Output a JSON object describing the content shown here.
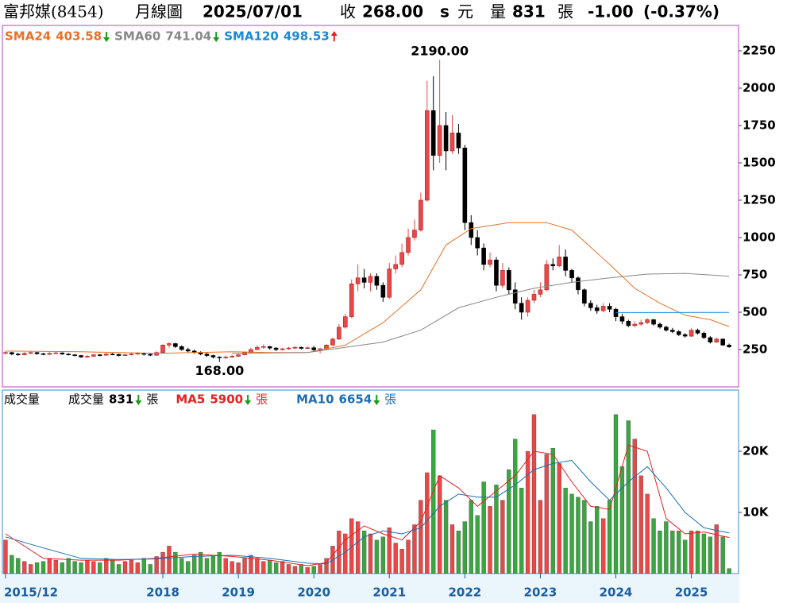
{
  "header": {
    "name": "富邦媒(8454)",
    "period": "月線圖",
    "date": "2025/07/01",
    "close_label": "收",
    "close": "268.00",
    "s": "s",
    "currency": "元",
    "volume_label": "量",
    "volume": "831",
    "volume_unit": "張",
    "change": "-1.00",
    "change_pct": "(-0.37%)"
  },
  "chart_data": [
    {
      "type": "candlestick",
      "colors": {
        "up": "#e84848",
        "down": "#000000"
      },
      "xlim": [
        -0.5,
        116.5
      ],
      "ylim": [
        0,
        2420
      ],
      "yticks": [
        250,
        500,
        750,
        1000,
        1250,
        1500,
        1750,
        2000,
        2250
      ],
      "candles": [
        [
          225,
          240,
          218,
          230
        ],
        [
          230,
          235,
          212,
          220
        ],
        [
          220,
          228,
          208,
          215
        ],
        [
          215,
          232,
          210,
          225
        ],
        [
          225,
          238,
          220,
          230
        ],
        [
          230,
          234,
          216,
          222
        ],
        [
          222,
          229,
          212,
          218
        ],
        [
          218,
          232,
          214,
          225
        ],
        [
          225,
          236,
          220,
          228
        ],
        [
          228,
          231,
          214,
          220
        ],
        [
          220,
          226,
          210,
          215
        ],
        [
          215,
          220,
          204,
          210
        ],
        [
          210,
          214,
          195,
          200
        ],
        [
          200,
          212,
          196,
          205
        ],
        [
          205,
          222,
          202,
          215
        ],
        [
          215,
          220,
          205,
          212
        ],
        [
          212,
          228,
          208,
          220
        ],
        [
          220,
          226,
          212,
          218
        ],
        [
          218,
          222,
          204,
          210
        ],
        [
          210,
          222,
          206,
          215
        ],
        [
          215,
          226,
          210,
          220
        ],
        [
          220,
          232,
          215,
          225
        ],
        [
          225,
          230,
          210,
          218
        ],
        [
          218,
          224,
          206,
          212
        ],
        [
          212,
          238,
          208,
          230
        ],
        [
          230,
          285,
          225,
          280
        ],
        [
          280,
          300,
          262,
          290
        ],
        [
          290,
          295,
          260,
          270
        ],
        [
          270,
          278,
          242,
          250
        ],
        [
          250,
          262,
          232,
          240
        ],
        [
          240,
          250,
          222,
          230
        ],
        [
          230,
          238,
          212,
          220
        ],
        [
          220,
          228,
          200,
          210
        ],
        [
          210,
          216,
          190,
          200
        ],
        [
          200,
          205,
          168,
          195
        ],
        [
          195,
          210,
          188,
          200
        ],
        [
          200,
          215,
          195,
          205
        ],
        [
          205,
          222,
          200,
          215
        ],
        [
          215,
          238,
          210,
          230
        ],
        [
          230,
          262,
          225,
          250
        ],
        [
          250,
          278,
          245,
          265
        ],
        [
          265,
          285,
          255,
          270
        ],
        [
          270,
          275,
          250,
          260
        ],
        [
          260,
          266,
          240,
          250
        ],
        [
          250,
          262,
          242,
          255
        ],
        [
          255,
          268,
          248,
          260
        ],
        [
          260,
          272,
          252,
          265
        ],
        [
          265,
          270,
          250,
          258
        ],
        [
          258,
          270,
          252,
          262
        ],
        [
          262,
          275,
          238,
          248
        ],
        [
          248,
          262,
          225,
          255
        ],
        [
          255,
          285,
          250,
          280
        ],
        [
          280,
          330,
          275,
          320
        ],
        [
          320,
          420,
          315,
          400
        ],
        [
          400,
          490,
          390,
          470
        ],
        [
          470,
          720,
          460,
          690
        ],
        [
          690,
          820,
          640,
          730
        ],
        [
          730,
          790,
          660,
          700
        ],
        [
          700,
          760,
          640,
          740
        ],
        [
          740,
          760,
          650,
          680
        ],
        [
          680,
          700,
          570,
          600
        ],
        [
          600,
          830,
          590,
          790
        ],
        [
          790,
          880,
          760,
          820
        ],
        [
          820,
          960,
          800,
          900
        ],
        [
          900,
          1060,
          880,
          1000
        ],
        [
          1000,
          1120,
          980,
          1050
        ],
        [
          1050,
          1300,
          1040,
          1250
        ],
        [
          1250,
          2050,
          1240,
          1850
        ],
        [
          1850,
          2080,
          1450,
          1550
        ],
        [
          1550,
          2190,
          1500,
          1750
        ],
        [
          1750,
          1840,
          1450,
          1580
        ],
        [
          1580,
          1820,
          1560,
          1700
        ],
        [
          1700,
          1760,
          1560,
          1600
        ],
        [
          1600,
          1620,
          1050,
          1100
        ],
        [
          1100,
          1150,
          950,
          1000
        ],
        [
          1000,
          1050,
          880,
          930
        ],
        [
          930,
          960,
          780,
          820
        ],
        [
          820,
          900,
          800,
          850
        ],
        [
          850,
          870,
          640,
          680
        ],
        [
          680,
          830,
          660,
          780
        ],
        [
          780,
          800,
          620,
          650
        ],
        [
          650,
          700,
          520,
          560
        ],
        [
          560,
          600,
          450,
          500
        ],
        [
          500,
          600,
          470,
          580
        ],
        [
          580,
          650,
          560,
          620
        ],
        [
          620,
          700,
          600,
          650
        ],
        [
          650,
          850,
          640,
          820
        ],
        [
          820,
          860,
          780,
          810
        ],
        [
          810,
          950,
          800,
          870
        ],
        [
          870,
          920,
          740,
          780
        ],
        [
          780,
          790,
          700,
          730
        ],
        [
          730,
          740,
          620,
          650
        ],
        [
          650,
          660,
          540,
          560
        ],
        [
          560,
          580,
          510,
          530
        ],
        [
          530,
          550,
          490,
          510
        ],
        [
          510,
          560,
          500,
          540
        ],
        [
          540,
          560,
          500,
          520
        ],
        [
          520,
          530,
          440,
          470
        ],
        [
          470,
          490,
          420,
          440
        ],
        [
          440,
          450,
          400,
          410
        ],
        [
          410,
          440,
          400,
          420
        ],
        [
          420,
          450,
          410,
          430
        ],
        [
          430,
          460,
          420,
          450
        ],
        [
          450,
          455,
          410,
          420
        ],
        [
          420,
          430,
          390,
          400
        ],
        [
          400,
          410,
          370,
          380
        ],
        [
          380,
          395,
          360,
          370
        ],
        [
          370,
          380,
          340,
          350
        ],
        [
          350,
          360,
          330,
          340
        ],
        [
          340,
          395,
          335,
          380
        ],
        [
          380,
          390,
          350,
          360
        ],
        [
          360,
          370,
          320,
          330
        ],
        [
          330,
          340,
          290,
          300
        ],
        [
          300,
          330,
          295,
          320
        ],
        [
          320,
          325,
          275,
          280
        ],
        [
          280,
          290,
          262,
          268
        ]
      ],
      "series": [
        {
          "name": "SMA24",
          "last": 403.58,
          "trend": "down",
          "color": "#e8702a",
          "x": [
            0,
            12,
            24,
            36,
            42,
            48,
            54,
            60,
            66,
            70,
            74,
            80,
            86,
            90,
            96,
            100,
            104,
            108,
            112,
            115
          ],
          "values": [
            240,
            235,
            225,
            235,
            230,
            230,
            280,
            430,
            650,
            950,
            1060,
            1100,
            1100,
            1050,
            820,
            660,
            560,
            480,
            450,
            404
          ]
        },
        {
          "name": "SMA60",
          "last": 741.04,
          "trend": "down",
          "color": "#888888",
          "x": [
            36,
            48,
            60,
            66,
            72,
            78,
            84,
            90,
            96,
            102,
            108,
            115
          ],
          "values": [
            225,
            230,
            300,
            380,
            530,
            600,
            660,
            700,
            730,
            755,
            760,
            741
          ]
        },
        {
          "name": "SMA120",
          "last": 498.53,
          "trend": "up",
          "color": "#1a8ad4",
          "x": [
            97,
            105,
            115
          ],
          "values": [
            498,
            498,
            499
          ]
        }
      ],
      "annotations": [
        {
          "x": 69,
          "value": 2190,
          "label": "2190.00",
          "position": "above"
        },
        {
          "x": 34,
          "value": 168,
          "label": "168.00",
          "position": "below"
        }
      ]
    },
    {
      "type": "bar",
      "title": "成交量",
      "colors": {
        "up": "#e84848",
        "down": "#3aa640"
      },
      "xlim": [
        -0.5,
        116.5
      ],
      "ylim": [
        0,
        30000
      ],
      "yticks": [
        {
          "value": 10000,
          "label": "10K"
        },
        {
          "value": 20000,
          "label": "20K"
        }
      ],
      "xticks": [
        {
          "value": 0,
          "label": "2015/12"
        },
        {
          "value": 25,
          "label": "2018"
        },
        {
          "value": 37,
          "label": "2019"
        },
        {
          "value": 49,
          "label": "2020"
        },
        {
          "value": 61,
          "label": "2021"
        },
        {
          "value": 73,
          "label": "2022"
        },
        {
          "value": 85,
          "label": "2023"
        },
        {
          "value": 97,
          "label": "2024"
        },
        {
          "value": 109,
          "label": "2025"
        }
      ],
      "values": [
        5500,
        3000,
        2500,
        2000,
        1500,
        1800,
        2000,
        2500,
        2200,
        1800,
        2500,
        2000,
        1800,
        2200,
        2000,
        1800,
        2500,
        2200,
        1500,
        2000,
        2200,
        1800,
        2500,
        1500,
        2800,
        3500,
        4500,
        3500,
        2500,
        2000,
        3000,
        3500,
        2500,
        3000,
        3500,
        2500,
        2000,
        1800,
        2500,
        3000,
        2500,
        2000,
        2200,
        1800,
        2000,
        1500,
        1200,
        1500,
        1000,
        1200,
        1500,
        2500,
        4500,
        7000,
        6500,
        9000,
        8500,
        7000,
        6500,
        5500,
        6000,
        7500,
        5000,
        4000,
        5500,
        8000,
        12000,
        16500,
        23500,
        16000,
        12000,
        8000,
        7000,
        8500,
        12000,
        9500,
        15000,
        11000,
        14500,
        12000,
        17000,
        22000,
        14000,
        20000,
        26000,
        12000,
        19500,
        20500,
        18000,
        14000,
        13000,
        12500,
        12000,
        8500,
        11000,
        9000,
        12000,
        26000,
        17500,
        25000,
        22000,
        16000,
        13000,
        9000,
        7000,
        8500,
        7000,
        7000,
        5500,
        7000,
        7000,
        6500,
        6000,
        8000,
        6000,
        831
      ],
      "legend": {
        "name": "成交量",
        "last": 831,
        "trend": "down",
        "unit": "張",
        "color": "#000000"
      },
      "series": [
        {
          "name": "MA5",
          "last": 5900,
          "trend": "down",
          "unit": "張",
          "color": "#e82020",
          "x": [
            0,
            6,
            12,
            18,
            24,
            30,
            36,
            42,
            48,
            51,
            54,
            57,
            60,
            63,
            66,
            69,
            72,
            75,
            78,
            81,
            84,
            87,
            90,
            93,
            96,
            99,
            102,
            105,
            108,
            111,
            115
          ],
          "values": [
            6500,
            2500,
            2200,
            2200,
            2500,
            3200,
            2800,
            2200,
            1300,
            1800,
            5500,
            7800,
            6500,
            5500,
            8500,
            16000,
            14000,
            11000,
            13500,
            16000,
            20000,
            19500,
            15000,
            11000,
            10500,
            21000,
            20000,
            9000,
            6500,
            6800,
            5900
          ]
        },
        {
          "name": "MA10",
          "last": 6654,
          "trend": "down",
          "unit": "張",
          "color": "#1a6eb5",
          "x": [
            0,
            6,
            12,
            18,
            24,
            30,
            36,
            42,
            48,
            51,
            54,
            57,
            60,
            63,
            66,
            69,
            72,
            75,
            78,
            81,
            84,
            87,
            90,
            93,
            96,
            99,
            102,
            105,
            108,
            111,
            115
          ],
          "values": [
            6000,
            4200,
            2500,
            2300,
            2400,
            2800,
            3000,
            2500,
            1700,
            1600,
            3500,
            6000,
            7000,
            6500,
            7500,
            11000,
            13000,
            12500,
            12500,
            14500,
            17000,
            18000,
            18500,
            15000,
            12000,
            15000,
            17500,
            14000,
            10000,
            7500,
            6654
          ]
        }
      ]
    }
  ]
}
